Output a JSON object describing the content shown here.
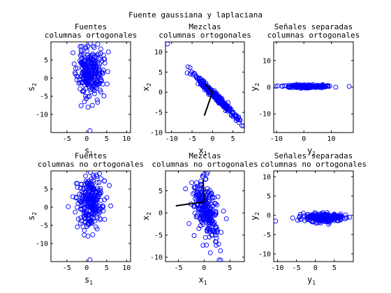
{
  "suptitle": "Fuente gaussiana y laplaciana",
  "marker_color": "#0000ff",
  "vector_color": "#000000",
  "chart_data": [
    {
      "type": "scatter",
      "title": [
        "Fuentes",
        "columnas ortogonales"
      ],
      "xlabel": {
        "base": "s",
        "sub": "1"
      },
      "ylabel": {
        "base": "s",
        "sub": "2"
      },
      "xlim": [
        -9,
        11
      ],
      "ylim": [
        -15,
        10
      ],
      "xticks": [
        -5,
        0,
        5,
        10
      ],
      "yticks": [
        -10,
        -5,
        0,
        5
      ],
      "cloud": {
        "cx": 0.8,
        "cy": 1.5,
        "sx": 1.6,
        "sy": 3.2,
        "rho": 0,
        "n": 260,
        "seed": 11
      },
      "points": [
        [
          0.8,
          -14.5
        ],
        [
          0.3,
          -8.0
        ],
        [
          1.4,
          -7.5
        ],
        [
          -0.6,
          -6.5
        ],
        [
          2.6,
          -6.0
        ],
        [
          0.9,
          9.5
        ],
        [
          1.6,
          8.8
        ],
        [
          -0.3,
          8.6
        ]
      ],
      "vectors": []
    },
    {
      "type": "scatter",
      "title": [
        "Mezclas",
        "columnas ortogonales"
      ],
      "xlabel": {
        "base": "x",
        "sub": "1"
      },
      "ylabel": {
        "base": "x",
        "sub": "2"
      },
      "xlim": [
        -11.5,
        7.8
      ],
      "ylim": [
        -10,
        12.5
      ],
      "xticks": [
        -10,
        -5,
        0,
        5
      ],
      "yticks": [
        -10,
        -5,
        0,
        5,
        10
      ],
      "cloud": {
        "cx": 0.5,
        "cy": -0.8,
        "sx": 2.6,
        "sy": 2.6,
        "rho": -0.985,
        "n": 260,
        "seed": 23
      },
      "points": [
        [
          -11,
          12
        ],
        [
          -6,
          6.3
        ],
        [
          -5.5,
          6.1
        ],
        [
          -4.0,
          4.0
        ],
        [
          6.5,
          -7.5
        ],
        [
          7.2,
          -8.3
        ],
        [
          5.8,
          -7.0
        ]
      ],
      "vectors": [
        {
          "x1": 0,
          "y1": 0,
          "x2": -1.8,
          "y2": 2.0
        },
        {
          "x1": 0,
          "y1": 0,
          "x2": -2.0,
          "y2": -5.8
        }
      ]
    },
    {
      "type": "scatter",
      "title": [
        "Señales separadas",
        "columnas ortogonales"
      ],
      "xlabel": {
        "base": "y",
        "sub": "1"
      },
      "ylabel": {
        "base": "y",
        "sub": "2"
      },
      "xlim": [
        -11,
        18
      ],
      "ylim": [
        -17,
        17
      ],
      "xticks": [
        -10,
        0,
        10
      ],
      "yticks": [
        -10,
        0,
        10
      ],
      "cloud": {
        "cx": 1.5,
        "cy": 0.3,
        "sx": 3.5,
        "sy": 0.25,
        "rho": 0,
        "n": 220,
        "seed": 37
      },
      "points": [
        [
          16.5,
          0.3
        ],
        [
          -9.5,
          0.5
        ],
        [
          -10.2,
          0.3
        ],
        [
          8.5,
          0.4
        ]
      ],
      "vectors": []
    },
    {
      "type": "scatter",
      "title": [
        "Fuentes",
        "columnas no ortogonales"
      ],
      "xlabel": {
        "base": "s",
        "sub": "1"
      },
      "ylabel": {
        "base": "s",
        "sub": "2"
      },
      "xlim": [
        -9,
        11
      ],
      "ylim": [
        -15,
        10
      ],
      "xticks": [
        -5,
        0,
        5,
        10
      ],
      "yticks": [
        -10,
        -5,
        0,
        5
      ],
      "cloud": {
        "cx": 0.8,
        "cy": 1.5,
        "sx": 1.6,
        "sy": 3.2,
        "rho": 0,
        "n": 260,
        "seed": 53
      },
      "points": [
        [
          0.8,
          -14.5
        ],
        [
          0.3,
          -8.0
        ],
        [
          1.5,
          -7.6
        ],
        [
          -0.6,
          -6.4
        ],
        [
          2.6,
          -6.0
        ],
        [
          0.9,
          9.5
        ],
        [
          1.6,
          8.8
        ],
        [
          -0.3,
          8.6
        ]
      ],
      "vectors": []
    },
    {
      "type": "scatter",
      "title": [
        "Mezclas",
        "columnas no ortogonales"
      ],
      "xlabel": {
        "base": "x",
        "sub": "1"
      },
      "ylabel": {
        "base": "x",
        "sub": "2"
      },
      "xlim": [
        -7.5,
        7.8
      ],
      "ylim": [
        -11,
        9.5
      ],
      "xticks": [
        -5,
        0,
        5
      ],
      "yticks": [
        -10,
        -5,
        0,
        5
      ],
      "cloud": {
        "cx": 0.3,
        "cy": 1.0,
        "sx": 1.3,
        "sy": 3.3,
        "rho": -0.45,
        "n": 260,
        "seed": 71
      },
      "points": [
        [
          3.2,
          -10.7
        ],
        [
          1.2,
          -9.0
        ],
        [
          0.5,
          8.8
        ],
        [
          -0.3,
          8.3
        ],
        [
          2.2,
          -6.5
        ]
      ],
      "vectors": [
        {
          "x1": 0,
          "y1": 2.5,
          "x2": -5.5,
          "y2": 1.6
        },
        {
          "x1": 0,
          "y1": 2.5,
          "x2": -0.2,
          "y2": 7.5
        }
      ]
    },
    {
      "type": "scatter",
      "title": [
        "Señales separadas",
        "columnas no ortogonales"
      ],
      "xlabel": {
        "base": "y",
        "sub": "1"
      },
      "ylabel": {
        "base": "y",
        "sub": "2"
      },
      "xlim": [
        -11,
        10
      ],
      "ylim": [
        -12,
        11.5
      ],
      "xticks": [
        -10,
        -5,
        0,
        5
      ],
      "yticks": [
        -10,
        -5,
        0,
        5,
        10
      ],
      "cloud": {
        "cx": 2.2,
        "cy": -0.6,
        "sx": 2.4,
        "sy": 0.55,
        "rho": 0,
        "n": 240,
        "seed": 89
      },
      "points": [
        [
          -10.5,
          -1.5
        ],
        [
          -6.0,
          -0.7
        ],
        [
          9.0,
          -0.5
        ],
        [
          8.0,
          0.1
        ],
        [
          -4.0,
          -1.1
        ]
      ],
      "vectors": []
    }
  ]
}
